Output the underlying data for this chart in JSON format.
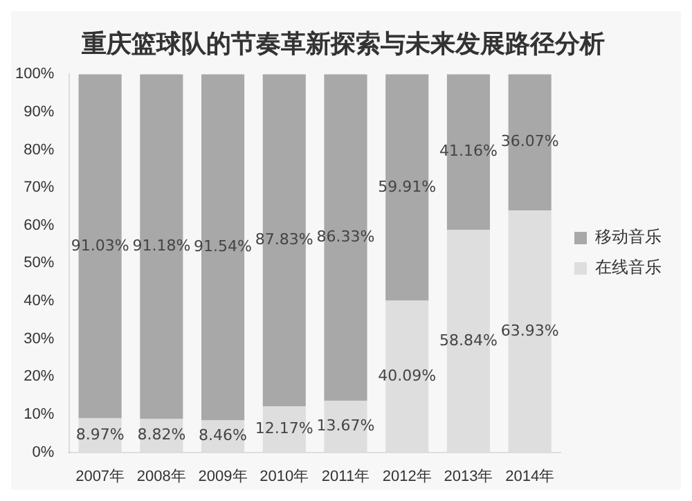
{
  "chart_data": {
    "type": "bar",
    "title": "重庆篮球队的节奏革新探索与未来发展路径分析",
    "stacked": true,
    "legend": "right",
    "grid": false,
    "categories": [
      "2007年",
      "2008年",
      "2009年",
      "2010年",
      "2011年",
      "2012年",
      "2013年",
      "2014年"
    ],
    "ylim": [
      0,
      100
    ],
    "yticks": [
      {
        "value": 0,
        "label": "0%"
      },
      {
        "value": 10,
        "label": "10%"
      },
      {
        "value": 20,
        "label": "20%"
      },
      {
        "value": 30,
        "label": "30%"
      },
      {
        "value": 40,
        "label": "40%"
      },
      {
        "value": 50,
        "label": "50%"
      },
      {
        "value": 60,
        "label": "60%"
      },
      {
        "value": 70,
        "label": "70%"
      },
      {
        "value": 80,
        "label": "80%"
      },
      {
        "value": 90,
        "label": "90%"
      },
      {
        "value": 100,
        "label": "100%"
      }
    ],
    "series": [
      {
        "name": "在线音乐",
        "color": "#dedede",
        "values": [
          8.97,
          8.82,
          8.46,
          12.17,
          13.67,
          40.09,
          58.84,
          63.93
        ],
        "value_labels": [
          "8.97%",
          "8.82%",
          "8.46%",
          "12.17%",
          "13.67%",
          "40.09%",
          "58.84%",
          "63.93%"
        ]
      },
      {
        "name": "移动音乐",
        "color": "#a8a8a8",
        "values": [
          91.03,
          91.18,
          91.54,
          87.83,
          86.33,
          59.91,
          41.16,
          36.07
        ],
        "value_labels": [
          "91.03%",
          "91.18%",
          "91.54%",
          "87.83%",
          "86.33%",
          "59.91%",
          "41.16%",
          "36.07%"
        ]
      }
    ]
  }
}
